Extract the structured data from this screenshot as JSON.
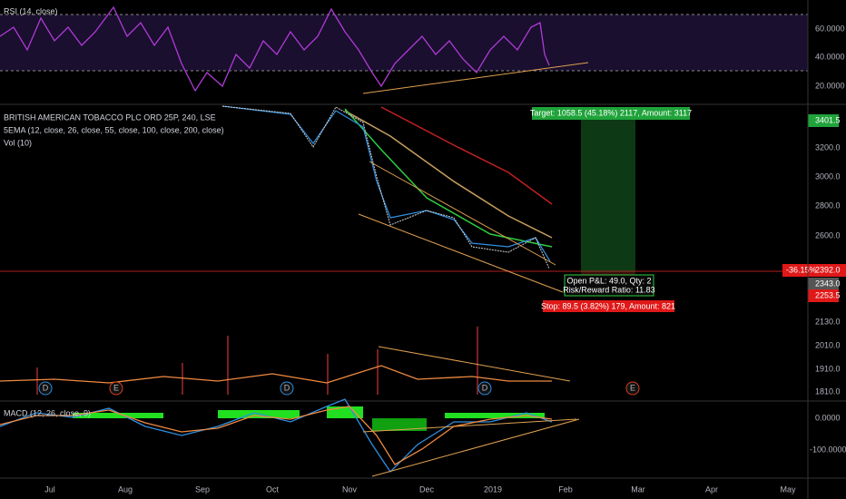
{
  "rsi": {
    "title": "RSI (14, close)",
    "ticks": [
      "60.0000",
      "40.0000",
      "20.0000"
    ]
  },
  "main": {
    "symbol": "BRITISH AMERICAN TOBACCO PLC ORD 25P, 240, LSE",
    "ema": "5EMA (12, close, 26, close, 55, close, 100, close, 200, close)",
    "vol": "Vol (10)",
    "target_price": "3401.5",
    "price_ticks": [
      "3200.0",
      "3000.0",
      "2800.0",
      "2600.0",
      "2130.0",
      "2010.0",
      "1910.0",
      "1810.0"
    ],
    "last_change": "-36.15%",
    "last_price": "2392.0",
    "marker_price": "2343.0",
    "stop_price": "2253.5"
  },
  "position": {
    "target": "Target: 1058.5 (45.18%) 2117, Amount: 3117",
    "open_pnl": "Open P&L: 49.0, Qty: 2",
    "risk_reward": "Risk/Reward Ratio: 11.83",
    "stop": "Stop: 89.5 (3.82%) 179, Amount: 821"
  },
  "events": [
    "D",
    "E",
    "D",
    "D",
    "E"
  ],
  "macd": {
    "title": "MACD (12, 26, close, 9)",
    "ticks": [
      "0.0000",
      "-100.0000"
    ]
  },
  "time_axis": [
    "Jul",
    "Aug",
    "Sep",
    "Oct",
    "Nov",
    "Dec",
    "2019",
    "Feb",
    "Mar",
    "Apr",
    "May"
  ]
}
